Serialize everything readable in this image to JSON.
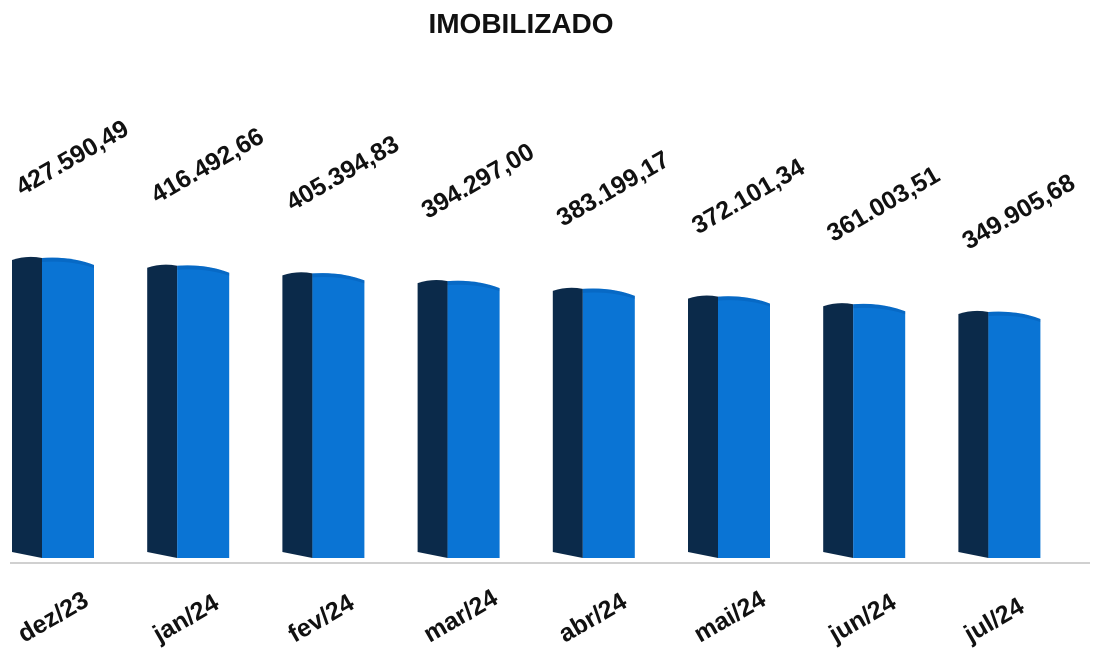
{
  "chart_data": {
    "type": "bar",
    "title": "IMOBILIZADO",
    "categories": [
      "dez/23",
      "jan/24",
      "fev/24",
      "mar/24",
      "abr/24",
      "mai/24",
      "jun/24",
      "jul/24"
    ],
    "values": [
      427590.49,
      416492.66,
      405394.83,
      394297.0,
      383199.17,
      372101.34,
      361003.51,
      349905.68
    ],
    "data_labels": [
      "427.590,49",
      "416.492,66",
      "405.394,83",
      "394.297,00",
      "383.199,17",
      "372.101,34",
      "361.003,51",
      "349.905,68"
    ],
    "xlabel": "",
    "ylabel": "",
    "grid": false,
    "legend": "none",
    "colors": {
      "bar_front": "#0a74d4",
      "bar_side": "#0b2a4a",
      "bar_top": "#0660b8",
      "baseline": "#d0d0d0",
      "text": "#111111"
    }
  }
}
